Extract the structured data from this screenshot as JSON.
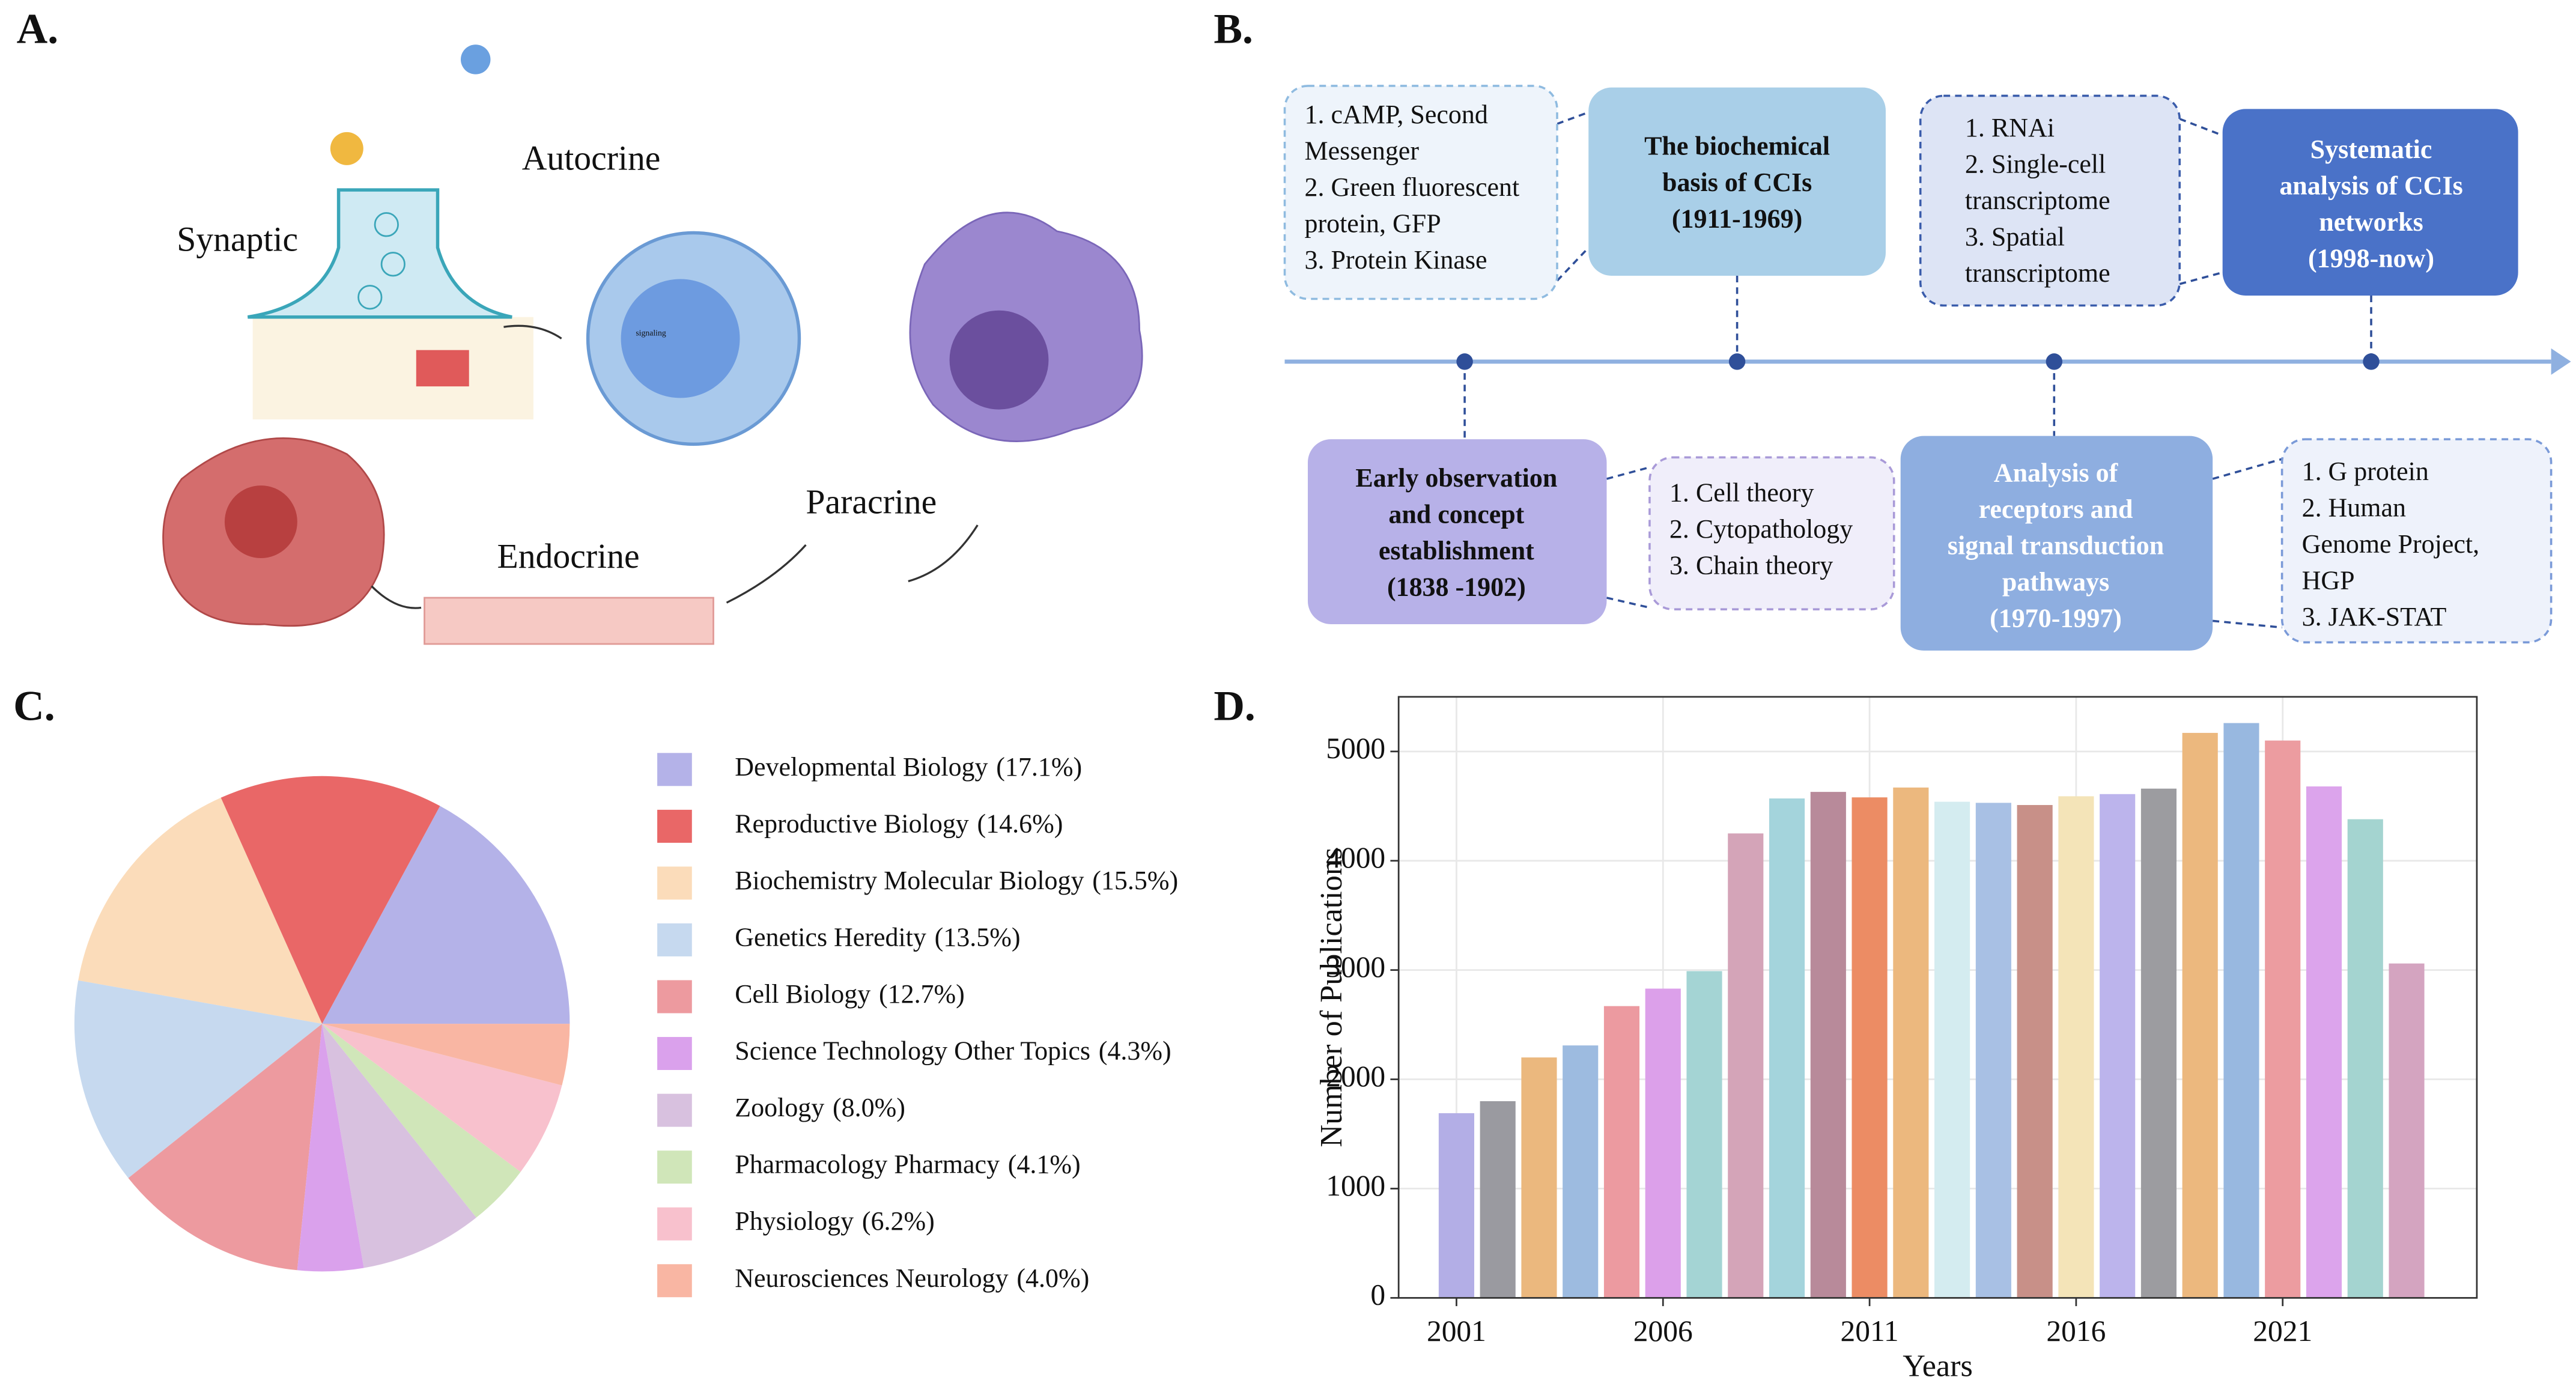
{
  "panel_labels": [
    "A.",
    "B.",
    "C.",
    "D."
  ],
  "panel_a": {
    "labels": [
      "Synaptic",
      "Autocrine",
      "Paracrine",
      "Endocrine",
      "signaling"
    ]
  },
  "panel_b": {
    "top": [
      {
        "lines": [
          "1. cAMP, Second",
          "Messenger",
          "2. Green fluorescent",
          "protein, GFP",
          "3. Protein Kinase"
        ]
      },
      {
        "lines": [
          "The biochemical",
          "basis of CCIs",
          "(1911-1969)"
        ]
      },
      {
        "lines": [
          "1. RNAi",
          "2. Single-cell",
          "transcriptome",
          "3. Spatial",
          "transcriptome"
        ]
      },
      {
        "lines": [
          "Systematic",
          "analysis of CCIs",
          "networks",
          "(1998-now)"
        ]
      }
    ],
    "bottom": [
      {
        "lines": [
          "Early observation",
          "and concept",
          "establishment",
          "(1838 -1902)"
        ]
      },
      {
        "lines": [
          "1. Cell theory",
          "2. Cytopathology",
          "3. Chain theory"
        ]
      },
      {
        "lines": [
          "Analysis of",
          "receptors and",
          "signal transduction",
          "pathways",
          "(1970-1997)"
        ]
      },
      {
        "lines": [
          "1. G protein",
          "2. Human",
          "Genome Project,",
          "HGP",
          "3. JAK-STAT"
        ]
      }
    ]
  },
  "chart_data": [
    {
      "type": "pie",
      "categories": [
        "Developmental Biology",
        "Reproductive Biology",
        "Biochemistry Molecular Biology",
        "Genetics Heredity",
        "Cell Biology",
        "Science Technology Other Topics",
        "Zoology",
        "Pharmacology Pharmacy",
        "Physiology",
        "Neurosciences Neurology"
      ],
      "values": [
        17.1,
        14.6,
        15.5,
        13.5,
        12.7,
        4.3,
        8.0,
        4.1,
        6.2,
        4.0
      ],
      "value_labels": [
        "(17.1%)",
        "(14.6%)",
        "(15.5%)",
        "(13.5%)",
        "(12.7%)",
        "(4.3%)",
        "(8.0%)",
        "(4.1%)",
        "(6.2%)",
        "(4.0%)"
      ],
      "colors": [
        "#b4b2e8",
        "#e96767",
        "#fbdcba",
        "#c6d9ef",
        "#ed9a9f",
        "#daa1ec",
        "#d8c1df",
        "#d0e6b9",
        "#f8c1cd",
        "#f9b6a3"
      ]
    },
    {
      "type": "bar",
      "xlabel": "Years",
      "ylabel": "Number of Publications",
      "x": [
        2001,
        2002,
        2003,
        2004,
        2005,
        2006,
        2007,
        2008,
        2009,
        2010,
        2011,
        2012,
        2013,
        2014,
        2015,
        2016,
        2017,
        2018,
        2019,
        2020,
        2021,
        2022,
        2023,
        2024
      ],
      "values": [
        1690,
        1800,
        2200,
        2310,
        2670,
        2830,
        2990,
        4250,
        4570,
        4630,
        4580,
        4670,
        4540,
        4530,
        4510,
        4590,
        4610,
        4660,
        5170,
        5260,
        5100,
        4680,
        4380,
        3060
      ],
      "colors": [
        "#b3aee6",
        "#9a9aa0",
        "#ebb87e",
        "#9dbbe0",
        "#ec9aa0",
        "#dca0ea",
        "#a4d4d4",
        "#d4a4b8",
        "#a4d4dc",
        "#b88a9a",
        "#ec8c64",
        "#ecb87e",
        "#d4ecf0",
        "#a8c0e4",
        "#c89088",
        "#f4e4b8",
        "#bcb4ec",
        "#9c9ca0",
        "#ecb87e",
        "#98b8e0",
        "#ec9ca0",
        "#dca4ec",
        "#a4d4d0",
        "#d4a4c0"
      ],
      "xlim": [
        1999.6,
        2025.7
      ],
      "ylim": [
        0,
        5500
      ],
      "xticks": [
        2001,
        2006,
        2011,
        2016,
        2021
      ],
      "yticks": [
        0,
        1000,
        2000,
        3000,
        4000,
        5000
      ],
      "grid": true
    }
  ]
}
